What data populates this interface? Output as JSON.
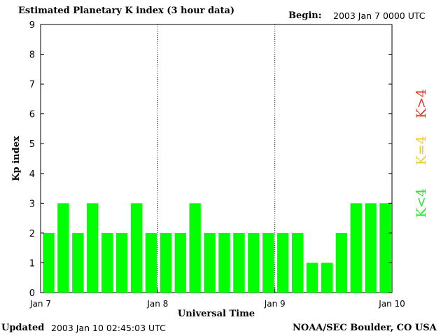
{
  "header": {
    "title": "Estimated Planetary K index (3 hour data)",
    "begin_label": "Begin:",
    "begin_value": "2003 Jan 7 0000 UTC"
  },
  "footer": {
    "updated_label": "Updated",
    "updated_value": "2003 Jan 10 02:45:03 UTC",
    "source": "NOAA/SEC Boulder, CO USA"
  },
  "legend": [
    {
      "label": "K<4",
      "color": "#22ee22"
    },
    {
      "label": "K=4",
      "color": "#eecc22"
    },
    {
      "label": "K>4",
      "color": "#ee3322"
    }
  ],
  "chart_data": {
    "type": "bar",
    "title": "Estimated Planetary K index (3 hour data)",
    "xlabel": "Universal Time",
    "ylabel": "Kp index",
    "ylim": [
      0,
      9
    ],
    "yticks": [
      "0",
      "1",
      "2",
      "3",
      "4",
      "5",
      "6",
      "7",
      "8",
      "9"
    ],
    "xticks": [
      "Jan 7",
      "Jan 8",
      "Jan 9",
      "Jan 10"
    ],
    "bar_color": "#00ff00",
    "series": [
      {
        "values": [
          2,
          3,
          2,
          3,
          2,
          2,
          3,
          2,
          2,
          2,
          3,
          2,
          2,
          2,
          2,
          2,
          2,
          2,
          1,
          1,
          2,
          3,
          3,
          3
        ]
      }
    ],
    "grid": false,
    "day_separators": [
      "Jan 8",
      "Jan 9"
    ]
  }
}
